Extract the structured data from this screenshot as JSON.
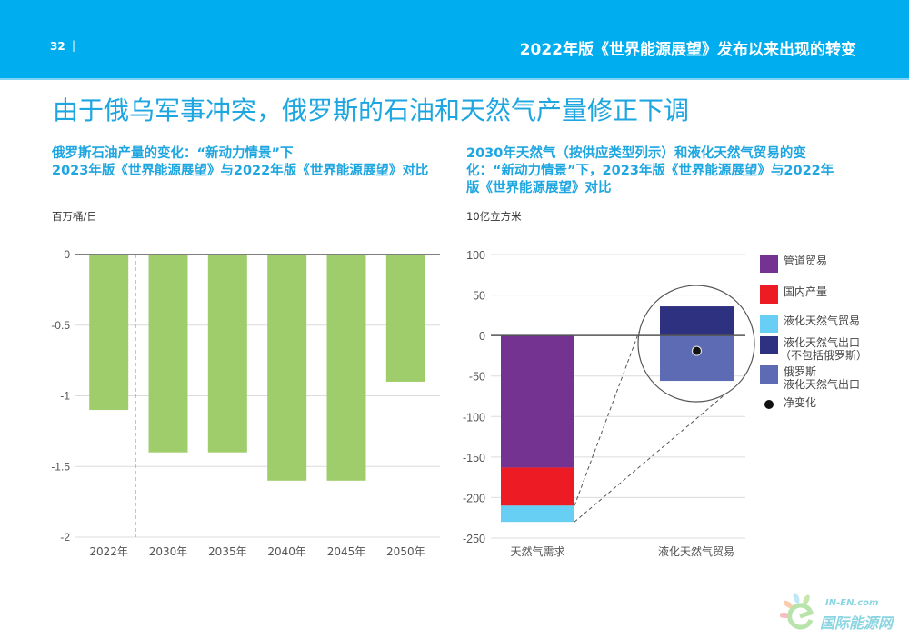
{
  "header": {
    "page_number": "32",
    "separator": "|",
    "section_title": "2022年版《世界能源展望》发布以来出现的转变"
  },
  "main_title": "由于俄乌军事冲突，俄罗斯的石油和天然气产量修正下调",
  "colors": {
    "header_bg": "#00adee",
    "title_blue": "#1ea6e0",
    "bar_green": "#a0cd6c",
    "pipeline": "#743391",
    "domestic": "#ed1c24",
    "lng_trade": "#67cff4",
    "lng_export_ex_russia": "#2e3180",
    "russia_lng_export": "#5c6bb3",
    "net_change": "#111111"
  },
  "chart_data": [
    {
      "type": "bar",
      "title": "俄罗斯石油产量的变化：“新动力情景”下 2023年版《世界能源展望》与2022年版《世界能源展望》对比",
      "title_lines": [
        "俄罗斯石油产量的变化：“新动力情景”下",
        "2023年版《世界能源展望》与2022年版《世界能源展望》对比"
      ],
      "ylabel": "百万桶/日",
      "xlabel": "",
      "categories": [
        "2022年",
        "2030年",
        "2035年",
        "2040年",
        "2045年",
        "2050年"
      ],
      "values": [
        -1.1,
        -1.4,
        -1.4,
        -1.6,
        -1.6,
        -0.9
      ],
      "ylim": [
        -2,
        0
      ],
      "yticks": [
        0,
        -0.5,
        -1,
        -1.5,
        -2
      ],
      "ytick_labels": [
        "0",
        "-0.5",
        "-1",
        "-1.5",
        "-2"
      ],
      "grid": true,
      "divider_after_category": "2022年"
    },
    {
      "type": "bar",
      "stacked": true,
      "title": "2030年天然气（按供应类型列示）和液化天然气贸易的变化：“新动力情景”下，2023年版《世界能源展望》与2022年版《世界能源展望》对比",
      "title_lines": [
        "2030年天然气（按供应类型列示）和液化天然气贸易的变",
        "化：“新动力情景”下，2023年版《世界能源展望》与2022年",
        "版《世界能源展望》对比"
      ],
      "ylabel": "10亿立方米",
      "xlabel": "",
      "categories": [
        "天然气需求",
        "液化天然气贸易"
      ],
      "series": [
        {
          "name": "管道贸易",
          "values": [
            -163,
            0
          ]
        },
        {
          "name": "国内产量",
          "values": [
            -47,
            0
          ]
        },
        {
          "name": "液化天然气贸易",
          "values": [
            -20,
            0
          ]
        },
        {
          "name": "液化天然气出口（不包括俄罗斯）",
          "values": [
            0,
            36
          ]
        },
        {
          "name": "俄罗斯液化天然气出口",
          "values": [
            0,
            -56
          ]
        }
      ],
      "net_change": {
        "name": "净变化",
        "category": "液化天然气贸易",
        "value": -19
      },
      "ylim": [
        -250,
        100
      ],
      "yticks": [
        100,
        50,
        0,
        -50,
        -100,
        -150,
        -200,
        -250
      ],
      "ytick_labels": [
        "100",
        "50",
        "0",
        "-50",
        "-100",
        "-150",
        "-200",
        "-250"
      ],
      "grid": true,
      "legend_position": "right",
      "legend": [
        {
          "label_lines": [
            "管道贸易"
          ],
          "color_key": "pipeline"
        },
        {
          "label_lines": [
            "国内产量"
          ],
          "color_key": "domestic"
        },
        {
          "label_lines": [
            "液化天然气贸易"
          ],
          "color_key": "lng_trade"
        },
        {
          "label_lines": [
            "液化天然气出口",
            "（不包括俄罗斯）"
          ],
          "color_key": "lng_export_ex_russia"
        },
        {
          "label_lines": [
            "俄罗斯",
            "液化天然气出口"
          ],
          "color_key": "russia_lng_export"
        },
        {
          "label_lines": [
            "净变化"
          ],
          "color_key": "net_change",
          "marker": "dot"
        }
      ]
    }
  ],
  "watermark": {
    "line1": "IN-EN.com",
    "line2": "国际能源网"
  }
}
